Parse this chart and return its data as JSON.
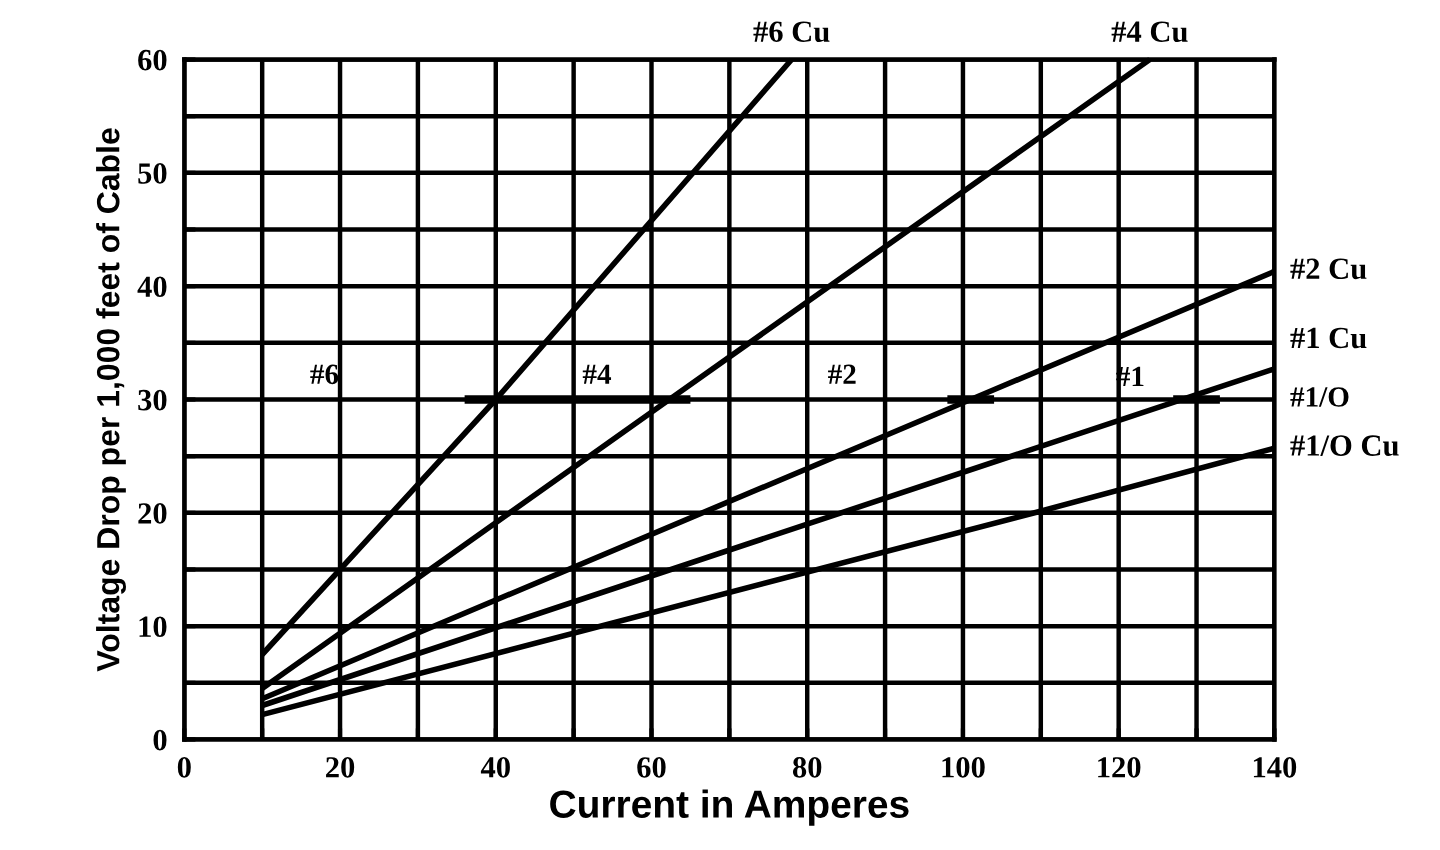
{
  "chart_data": {
    "type": "line",
    "xlabel": "Current in Amperes",
    "ylabel": "Voltage Drop per 1,000 feet of Cable",
    "xlim": [
      0,
      140
    ],
    "ylim": [
      0,
      60
    ],
    "xticks": [
      0,
      {
        "value": 10,
        "label": null
      },
      20,
      {
        "value": 30,
        "label": null
      },
      40,
      {
        "value": 50,
        "label": null
      },
      60,
      {
        "value": 70,
        "label": null
      },
      80,
      {
        "value": 90,
        "label": null
      },
      100,
      {
        "value": 110,
        "label": null
      },
      120,
      {
        "value": 130,
        "label": null
      },
      140
    ],
    "yticks": [
      0,
      {
        "value": 5,
        "label": null
      },
      10,
      {
        "value": 15,
        "label": null
      },
      20,
      {
        "value": 25,
        "label": null
      },
      30,
      {
        "value": 35,
        "label": null
      },
      40,
      {
        "value": 45,
        "label": null
      },
      50,
      {
        "value": 55,
        "label": null
      },
      60
    ],
    "grid": true,
    "legend": false,
    "marker": "none",
    "line_style": "solid",
    "series": [
      {
        "name": "#6 Cu",
        "color": "#000000",
        "x": [
          10,
          40,
          78
        ],
        "values": [
          7.5,
          30,
          60
        ]
      },
      {
        "name": "#4 Cu",
        "color": "#000000",
        "x": [
          10,
          62.7,
          124
        ],
        "values": [
          4.5,
          30.2,
          60
        ]
      },
      {
        "name": "#2 Cu",
        "color": "#000000",
        "x": [
          10,
          101,
          140
        ],
        "values": [
          3.6,
          30,
          41.3
        ]
      },
      {
        "name": "#1 Cu",
        "color": "#000000",
        "x": [
          10,
          130.3,
          140
        ],
        "values": [
          3,
          30.5,
          32.7
        ]
      },
      {
        "name": "#1/O Cu",
        "color": "#000000",
        "x": [
          10,
          109.7,
          140
        ],
        "values": [
          2.2,
          20.1,
          25.7
        ]
      },
      {
        "color": "#000000",
        "x": [
          36,
          65
        ],
        "values": [
          30,
          30
        ]
      },
      {
        "color": "#000000",
        "x": [
          98,
          104
        ],
        "values": [
          30,
          30
        ]
      },
      {
        "color": "#000000",
        "x": [
          127,
          133
        ],
        "values": [
          30,
          30
        ]
      }
    ],
    "annotations": [
      "#1/O",
      "#6",
      "#4",
      "#2",
      "#1"
    ]
  }
}
